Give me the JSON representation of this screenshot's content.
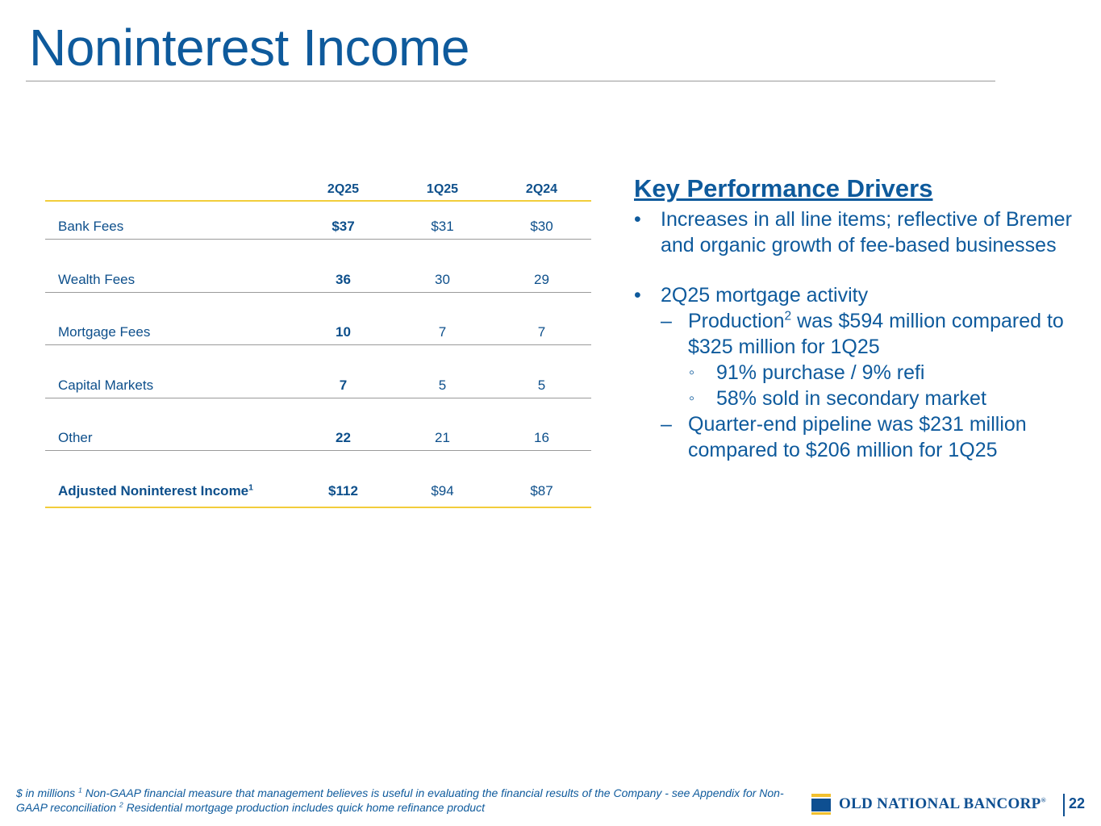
{
  "title": "Noninterest Income",
  "table": {
    "columns": [
      "2Q25",
      "1Q25",
      "2Q24"
    ],
    "rows": [
      {
        "label": "Bank Fees",
        "values": [
          "$37",
          "$31",
          "$30"
        ]
      },
      {
        "label": "Wealth Fees",
        "values": [
          "36",
          "30",
          "29"
        ]
      },
      {
        "label": "Mortgage Fees",
        "values": [
          "10",
          "7",
          "7"
        ]
      },
      {
        "label": "Capital Markets",
        "values": [
          "7",
          "5",
          "5"
        ]
      },
      {
        "label": "Other",
        "values": [
          "22",
          "21",
          "16"
        ]
      }
    ],
    "total": {
      "label": "Adjusted Noninterest Income",
      "sup": "1",
      "values": [
        "$112",
        "$94",
        "$87"
      ]
    }
  },
  "drivers": {
    "heading": "Key Performance Drivers",
    "bullet1": "Increases in all line items; reflective of Bremer and organic growth of fee-based businesses",
    "bullet2": "2Q25 mortgage activity",
    "sub1_pre": "Production",
    "sub1_sup": "2",
    "sub1_post": " was $594 million compared to $325 million for 1Q25",
    "subsub1": "91% purchase / 9% refi",
    "subsub2": "58% sold in secondary market",
    "sub2": "Quarter-end pipeline was $231 million compared to $206 million for 1Q25",
    "markers": {
      "bullet": "•",
      "dash": "–",
      "circle": "◦"
    }
  },
  "footnote": {
    "part1": "$ in millions ",
    "sup1": "1",
    "part2": " Non-GAAP financial measure that management believes is useful in evaluating the financial results of the Company - see Appendix for Non-GAAP reconciliation ",
    "sup2": "2",
    "part3": " Residential mortgage production includes quick home refinance product"
  },
  "logo": {
    "text": "OLD NATIONAL BANCORP",
    "mark": "®"
  },
  "page_number": "22",
  "colors": {
    "primary": "#0e5a9c",
    "accent": "#f2cd3b",
    "rule": "#9a9a9a"
  }
}
